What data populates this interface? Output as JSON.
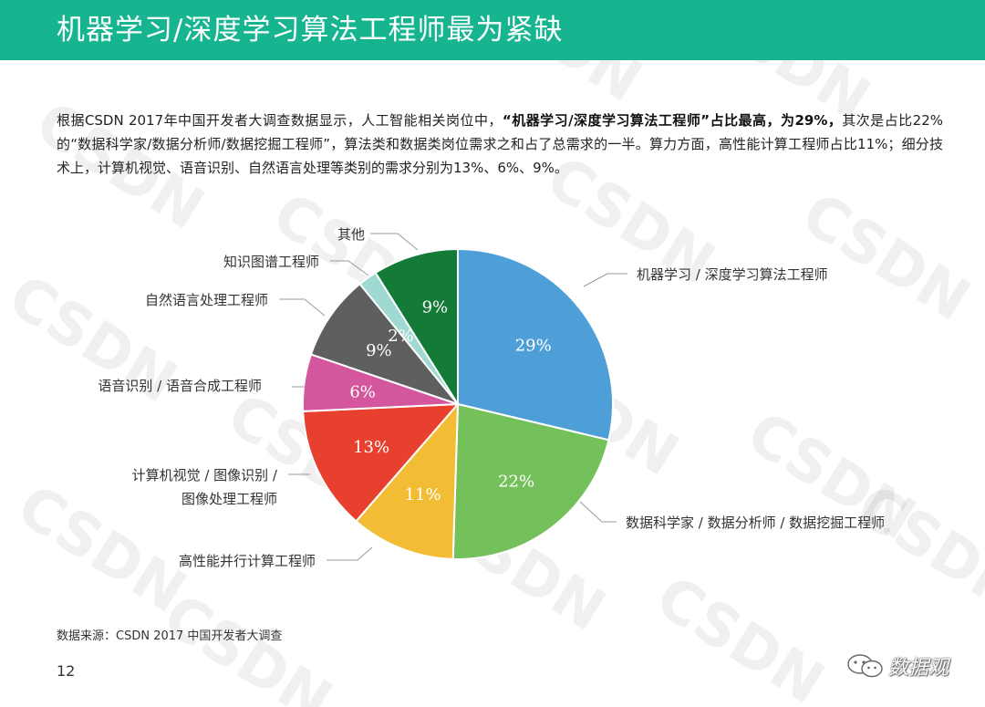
{
  "header": {
    "title": "机器学习/深度学习算法工程师最为紧缺"
  },
  "intro": {
    "part1": "根据CSDN 2017年中国开发者大调查数据显示，人工智能相关岗位中，",
    "bold": "“机器学习/深度学习算法工程师”占比最高，为29%，",
    "part2": "其次是占比22%的“数据科学家/数据分析师/数据挖掘工程师”，算法类和数据类岗位需求之和占了总需求的一半。算力方面，高性能计算工程师占比11%；细分技术上，计算机视觉、语音识别、自然语言处理等类别的需求分别为13%、6%、9%。"
  },
  "chart_data": {
    "type": "pie",
    "title": "",
    "start_angle_deg": 0,
    "direction": "clockwise",
    "slices": [
      {
        "label": "机器学习 / 深度学习算法工程师",
        "value": 29,
        "value_label": "29%",
        "color": "#4e9fd8"
      },
      {
        "label": "数据科学家 / 数据分析师 / 数据挖掘工程师",
        "value": 22,
        "value_label": "22%",
        "color": "#74c05a"
      },
      {
        "label": "高性能并行计算工程师",
        "value": 11,
        "value_label": "11%",
        "color": "#f2bd34"
      },
      {
        "label_lines": [
          "计算机视觉 / 图像识别 /",
          "图像处理工程师"
        ],
        "value": 13,
        "value_label": "13%",
        "color": "#e8402e"
      },
      {
        "label": "语音识别 / 语音合成工程师",
        "value": 6,
        "value_label": "6%",
        "color": "#d4579d"
      },
      {
        "label": "自然语言处理工程师",
        "value": 9,
        "value_label": "9%",
        "color": "#5f5f5f"
      },
      {
        "label": "知识图谱工程师",
        "value": 2,
        "value_label": "2%",
        "color": "#9fd9d1"
      },
      {
        "label": "其他",
        "value": 9,
        "value_label": "9%",
        "color": "#147a37"
      }
    ]
  },
  "footer": {
    "source": "数据来源：CSDN  2017 中国开发者大调查",
    "page_number": "12",
    "brand": "数据观"
  },
  "watermark": {
    "text": "CSDN"
  }
}
